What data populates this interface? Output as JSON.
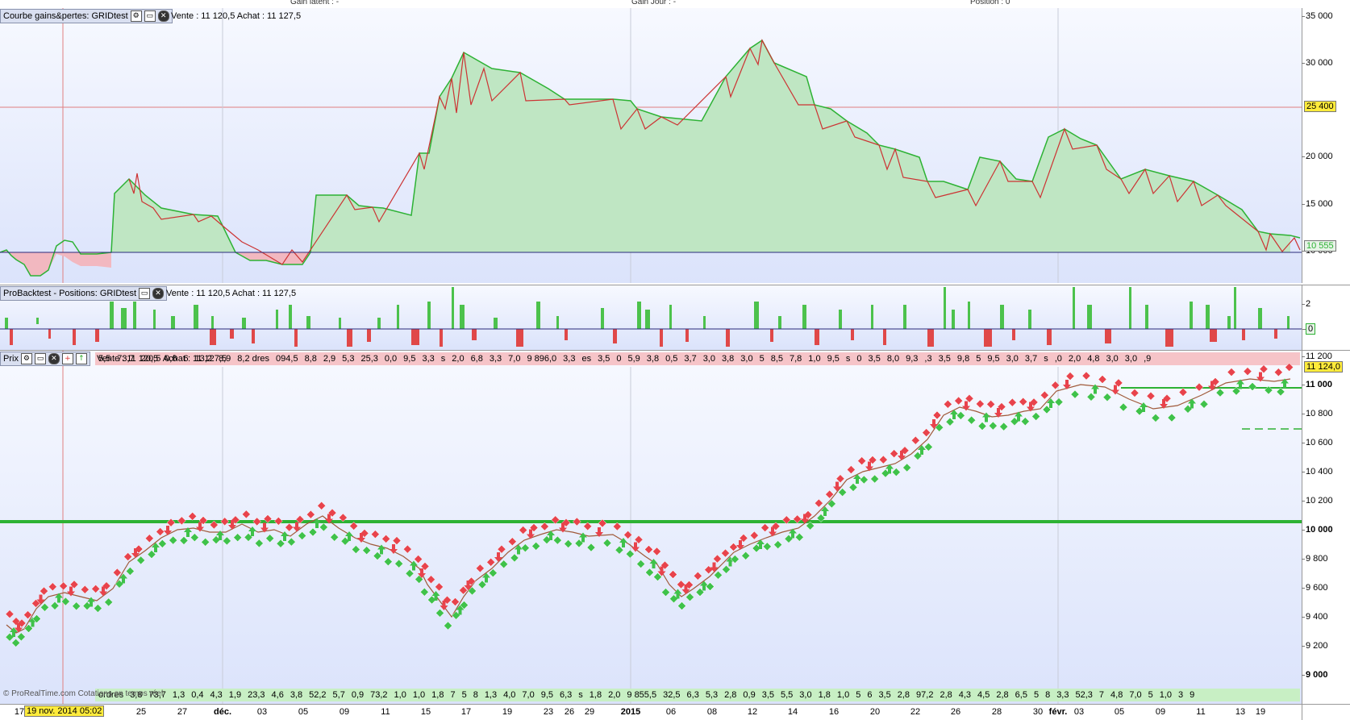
{
  "topbar": {
    "gain_latent": "Gain latent : -",
    "gain_jour": "Gain Jour : -",
    "position": "Position : 0"
  },
  "equity_panel": {
    "title": "Courbe gains&pertes: GRIDtest",
    "info": "Vente : 11 120,5 Achat : 11 127,5",
    "y_ticks": [
      "35 000",
      "30 000",
      "25 000",
      "20 000",
      "15 000",
      "10 000"
    ],
    "level_tag": "25 400",
    "last_tag": "10 555"
  },
  "positions_panel": {
    "title": "ProBacktest - Positions: GRIDtest",
    "info": "Vente : 11 120,5 Achat : 11 127,5",
    "y_ticks": [
      "2",
      "0"
    ]
  },
  "price_panel": {
    "title": "Prix",
    "info": "Vente : 11 120,5 Achat : 11 127,5",
    "y_ticks": [
      "11 200",
      "11 000",
      "10 800",
      "10 600",
      "10 400",
      "10 200",
      "10 000",
      "9 800",
      "9 600",
      "9 400",
      "9 200",
      "9 000"
    ],
    "last_tag": "11 124,0",
    "top_strip": [
      "5,5",
      "73,7",
      "20,5",
      "0,6",
      "6",
      "13,2",
      "8,9",
      "8,2 dres",
      "094,5",
      "8,8",
      "2,9",
      "5,3",
      "25,3",
      "0,0",
      "9,5",
      "3,3",
      "s",
      "2,0",
      "6,8",
      "3,3",
      "7,0",
      "9 896,0",
      "3,3",
      "es",
      "3,5",
      "0",
      "5,9",
      "3,8",
      "0,5",
      "3,7",
      "3,0",
      "3,8",
      "3,0",
      "5",
      "8,5",
      "7,8",
      "1,0",
      "9,5",
      "s",
      "0",
      "3,5",
      "8,0",
      "9,3",
      ",3",
      "3,5",
      "9,8",
      "5",
      "9,5",
      "3,0",
      "3,7",
      "s",
      ",0",
      "2,0",
      "4,8",
      "3,0",
      "3,0",
      ",9"
    ],
    "bottom_strip": [
      "ordres",
      "3,8",
      "73,7",
      "1,3",
      "0,4",
      "4,3",
      "1,9",
      "23,3",
      "4,6",
      "3,8",
      "52,2",
      "5,7",
      "0,9",
      "73,2",
      "1,0",
      "1,0",
      "1,8",
      "7",
      "5",
      "8",
      "1,3",
      "4,0",
      "7,0",
      "9,5",
      "6,3",
      "s",
      "1,8",
      "2,0",
      "9 855,5",
      "32,5",
      "6,3",
      "5,3",
      "2,8",
      "0,9",
      "3,5",
      "5,5",
      "3,0",
      "1,8",
      "1,0",
      "5",
      "6",
      "3,5",
      "2,8",
      "97,2",
      "2,8",
      "4,3",
      "4,5",
      "2,8",
      "6,5",
      "5",
      "8",
      "3,3",
      "52,3",
      "7",
      "4,8",
      "7,0",
      "5",
      "1,0",
      "3",
      "9"
    ],
    "watermark": "© ProRealTime.com Cotations en temps réel"
  },
  "x_axis": {
    "cursor_date": "19 nov. 2014 05:02",
    "ticks": [
      "17",
      "25",
      "27",
      "déc.",
      "03",
      "05",
      "09",
      "11",
      "15",
      "17",
      "19",
      "23",
      "26",
      "29",
      "2015",
      "06",
      "08",
      "12",
      "14",
      "16",
      "20",
      "22",
      "26",
      "28",
      "30",
      "févr.",
      "03",
      "05",
      "09",
      "11",
      "13",
      "19"
    ]
  },
  "colors": {
    "equity_fill": "#bfe6c3",
    "equity_line": "#2db234",
    "equity_down": "#cc3333",
    "loss_fill": "#f2b8c0",
    "buy": "#3fc24a",
    "sell": "#e8434c",
    "level_line": "#2db234",
    "panel_bg_top": "#f7f9ff",
    "panel_bg_bottom": "#dbe3fb"
  }
}
